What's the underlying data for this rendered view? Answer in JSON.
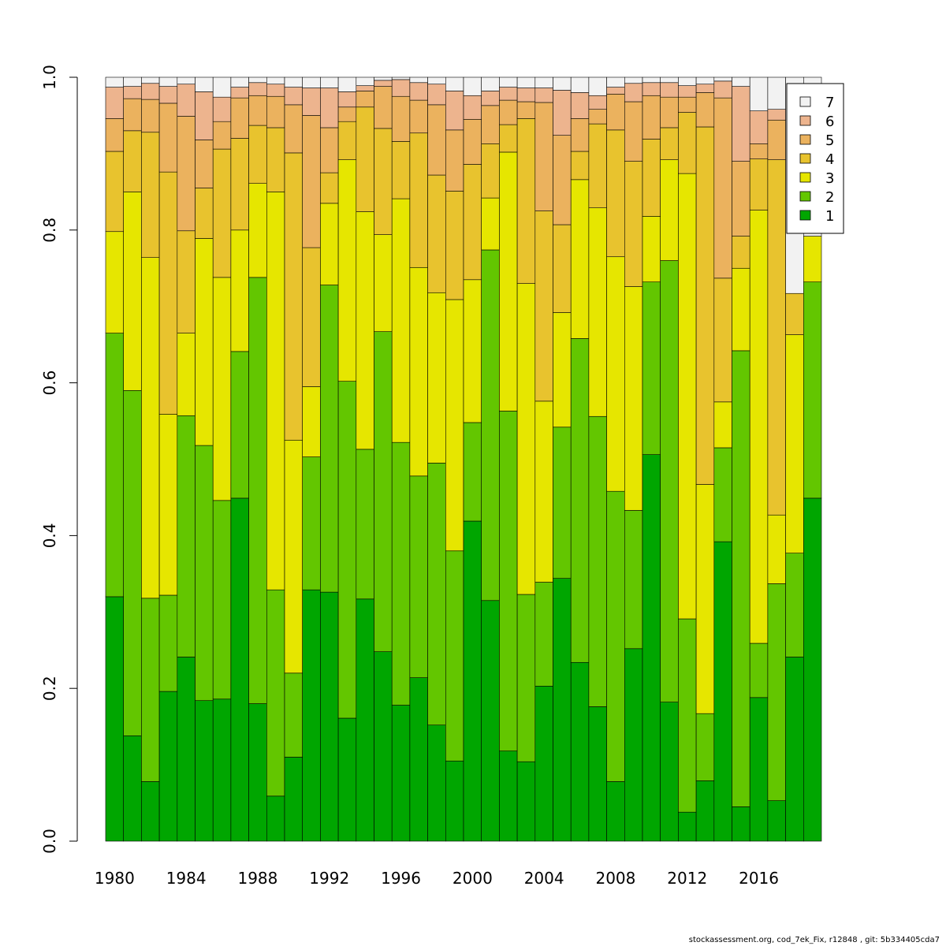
{
  "chart_data": {
    "type": "bar",
    "stacked": true,
    "title": "",
    "xlabel": "",
    "ylabel": "",
    "ylim": [
      0,
      1
    ],
    "yticks": [
      "0.0",
      "0.2",
      "0.4",
      "0.6",
      "0.8",
      "1.0"
    ],
    "xtick_labels": [
      "1980",
      "1984",
      "1988",
      "1992",
      "1996",
      "2000",
      "2004",
      "2008",
      "2012",
      "2016"
    ],
    "categories": [
      1980,
      1981,
      1982,
      1983,
      1984,
      1985,
      1986,
      1987,
      1988,
      1989,
      1990,
      1991,
      1992,
      1993,
      1994,
      1995,
      1996,
      1997,
      1998,
      1999,
      2000,
      2001,
      2002,
      2003,
      2004,
      2005,
      2006,
      2007,
      2008,
      2009,
      2010,
      2011,
      2012,
      2013,
      2014,
      2015,
      2016,
      2017,
      2018,
      2019
    ],
    "legend_position": "top-right",
    "series": [
      {
        "name": "1",
        "color": "#00a600",
        "cumulative": [
          0.32,
          0.138,
          0.078,
          0.196,
          0.241,
          0.184,
          0.186,
          0.449,
          0.18,
          0.059,
          0.11,
          0.329,
          0.326,
          0.161,
          0.317,
          0.248,
          0.178,
          0.214,
          0.152,
          0.105,
          0.419,
          0.315,
          0.118,
          0.104,
          0.203,
          0.344,
          0.234,
          0.176,
          0.078,
          0.252,
          0.506,
          0.182,
          0.038,
          0.079,
          0.392,
          0.045,
          0.188,
          0.053,
          0.241,
          0.449
        ]
      },
      {
        "name": "2",
        "color": "#63c600",
        "cumulative": [
          0.665,
          0.59,
          0.318,
          0.322,
          0.557,
          0.518,
          0.446,
          0.641,
          0.738,
          0.329,
          0.22,
          0.503,
          0.728,
          0.602,
          0.513,
          0.667,
          0.522,
          0.478,
          0.495,
          0.38,
          0.548,
          0.774,
          0.563,
          0.323,
          0.339,
          0.542,
          0.658,
          0.556,
          0.458,
          0.433,
          0.732,
          0.76,
          0.291,
          0.167,
          0.515,
          0.642,
          0.259,
          0.337,
          0.377,
          0.732
        ]
      },
      {
        "name": "3",
        "color": "#e6e600",
        "cumulative": [
          0.798,
          0.85,
          0.764,
          0.559,
          0.665,
          0.789,
          0.738,
          0.8,
          0.861,
          0.85,
          0.525,
          0.595,
          0.835,
          0.892,
          0.824,
          0.794,
          0.841,
          0.751,
          0.718,
          0.709,
          0.735,
          0.842,
          0.902,
          0.73,
          0.576,
          0.692,
          0.866,
          0.829,
          0.765,
          0.726,
          0.818,
          0.892,
          0.874,
          0.467,
          0.575,
          0.75,
          0.826,
          0.427,
          0.663,
          0.792
        ]
      },
      {
        "name": "4",
        "color": "#e8c32e",
        "cumulative": [
          0.903,
          0.93,
          0.928,
          0.876,
          0.799,
          0.855,
          0.906,
          0.92,
          0.937,
          0.934,
          0.901,
          0.777,
          0.875,
          0.942,
          0.961,
          0.933,
          0.916,
          0.927,
          0.872,
          0.851,
          0.886,
          0.913,
          0.938,
          0.946,
          0.825,
          0.807,
          0.903,
          0.939,
          0.931,
          0.89,
          0.919,
          0.934,
          0.954,
          0.935,
          0.737,
          0.792,
          0.893,
          0.892,
          0.717,
          0.792
        ]
      },
      {
        "name": "5",
        "color": "#ebb25e",
        "cumulative": [
          0.946,
          0.972,
          0.971,
          0.966,
          0.949,
          0.918,
          0.942,
          0.973,
          0.976,
          0.975,
          0.964,
          0.95,
          0.934,
          0.961,
          0.982,
          0.988,
          0.975,
          0.97,
          0.964,
          0.931,
          0.945,
          0.963,
          0.97,
          0.968,
          0.967,
          0.924,
          0.946,
          0.958,
          0.978,
          0.968,
          0.976,
          0.974,
          0.974,
          0.98,
          0.973,
          0.89,
          0.913,
          0.944,
          0.717,
          0.792
        ]
      },
      {
        "name": "6",
        "color": "#edb48e",
        "cumulative": [
          0.987,
          0.988,
          0.992,
          0.988,
          0.991,
          0.981,
          0.974,
          0.987,
          0.993,
          0.991,
          0.987,
          0.986,
          0.986,
          0.981,
          0.989,
          0.996,
          0.997,
          0.993,
          0.991,
          0.982,
          0.976,
          0.982,
          0.987,
          0.986,
          0.986,
          0.983,
          0.98,
          0.976,
          0.987,
          0.992,
          0.993,
          0.993,
          0.989,
          0.991,
          0.995,
          0.988,
          0.956,
          0.958,
          0.717,
          0.792
        ]
      },
      {
        "name": "7",
        "color": "#f2f2f2",
        "cumulative": [
          1,
          1,
          1,
          1,
          1,
          1,
          1,
          1,
          1,
          1,
          1,
          1,
          1,
          1,
          1,
          1,
          1,
          1,
          1,
          1,
          1,
          1,
          1,
          1,
          1,
          1,
          1,
          1,
          1,
          1,
          1,
          1,
          1,
          1,
          1,
          1,
          1,
          1,
          1,
          1
        ]
      }
    ],
    "legend": [
      "7",
      "6",
      "5",
      "4",
      "3",
      "2",
      "1"
    ]
  },
  "footer_text": "stockassessment.org, cod_7ek_Fix, r12848 , git: 5b334405cda7"
}
